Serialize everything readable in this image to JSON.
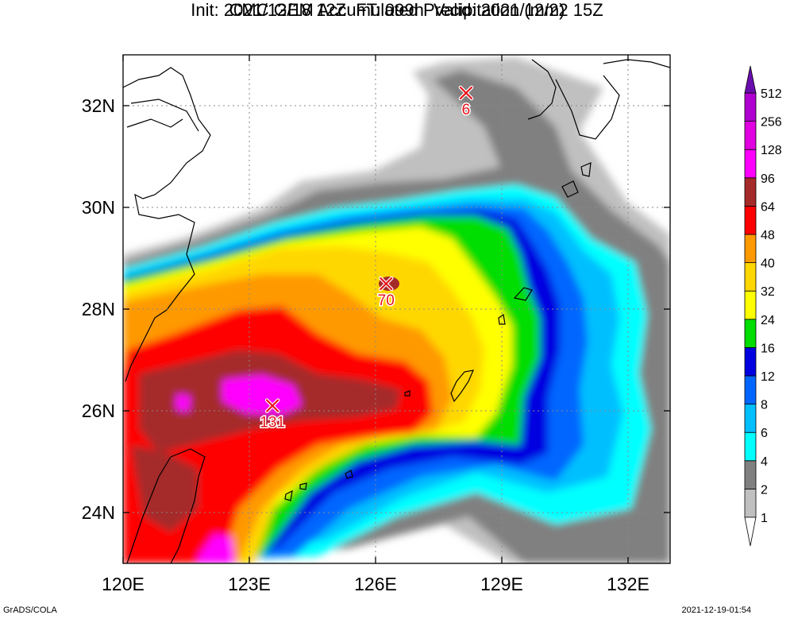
{
  "header": {
    "title": "CMC GEM Accumulated Precipitation (mm)",
    "subtitle": "Init: 2021/12/18 12Z  FT: 099h  Valid: 2021/12/22 15Z"
  },
  "map": {
    "lon_range": [
      120,
      133
    ],
    "lat_range": [
      23,
      33
    ],
    "lon_ticks": [
      120,
      123,
      126,
      129,
      132
    ],
    "lon_tick_labels": [
      "120E",
      "123E",
      "126E",
      "129E",
      "132E"
    ],
    "lat_ticks": [
      24,
      26,
      28,
      30,
      32
    ],
    "lat_tick_labels": [
      "24N",
      "26N",
      "28N",
      "30N",
      "32N"
    ],
    "grid": true,
    "markers": [
      {
        "label": "6",
        "lon": 128.15,
        "lat": 32.25
      },
      {
        "label": "70",
        "lon": 126.25,
        "lat": 28.5
      },
      {
        "label": "131",
        "lon": 123.55,
        "lat": 26.1
      }
    ]
  },
  "legend": {
    "levels": [
      "1",
      "2",
      "4",
      "6",
      "8",
      "12",
      "16",
      "24",
      "32",
      "40",
      "48",
      "64",
      "96",
      "128",
      "256",
      "512"
    ],
    "colors": [
      "#ffffff",
      "#c0c0c0",
      "#808080",
      "#00ffff",
      "#00bfff",
      "#0066ff",
      "#0000e0",
      "#00dd00",
      "#ffff00",
      "#ffd700",
      "#ff9900",
      "#ff0000",
      "#a52a2a",
      "#ff00ff",
      "#e000e0",
      "#b000d0",
      "#6a0dad"
    ]
  },
  "footer": {
    "credit": "GrADS/COLA",
    "timestamp": "2021-12-19-01:54"
  }
}
